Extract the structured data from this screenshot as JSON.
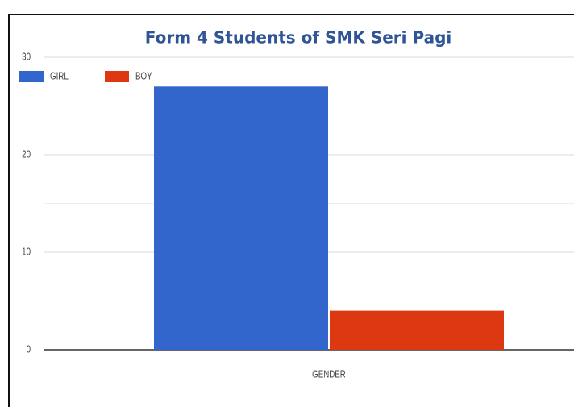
{
  "chart_data": {
    "type": "bar",
    "title": "Form 4 Students of SMK Seri Pagi",
    "categories": [
      "GENDER"
    ],
    "series": [
      {
        "name": "GIRL",
        "color": "#3366cc",
        "values": [
          27
        ]
      },
      {
        "name": "BOY",
        "color": "#dc3912",
        "values": [
          4
        ]
      }
    ],
    "ylim": [
      0,
      30
    ],
    "yticks": [
      0,
      10,
      20,
      30
    ],
    "minor_yticks": [
      5,
      15,
      25
    ],
    "grid": true,
    "legend": "top-left"
  }
}
